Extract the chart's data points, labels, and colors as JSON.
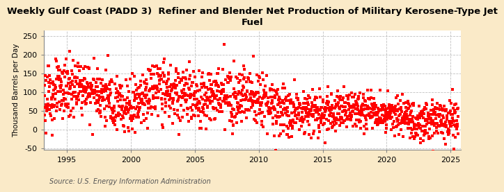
{
  "title": "Weekly Gulf Coast (PADD 3)  Refiner and Blender Net Production of Military Kerosene-Type Jet\nFuel",
  "ylabel": "Thousand Barrels per Day",
  "source": "Source: U.S. Energy Information Administration",
  "outer_bg": "#faeac8",
  "plot_bg": "#ffffff",
  "dot_color": "#ff0000",
  "grid_color": "#b0b0b0",
  "xlim": [
    1993.2,
    2025.8
  ],
  "ylim": [
    -55,
    265
  ],
  "yticks": [
    -50,
    0,
    50,
    100,
    150,
    200,
    250
  ],
  "xticks": [
    1995,
    2000,
    2005,
    2010,
    2015,
    2020,
    2025
  ],
  "dot_size": 5,
  "title_fontsize": 9.5,
  "ylabel_fontsize": 7.5,
  "tick_fontsize": 8,
  "source_fontsize": 7
}
